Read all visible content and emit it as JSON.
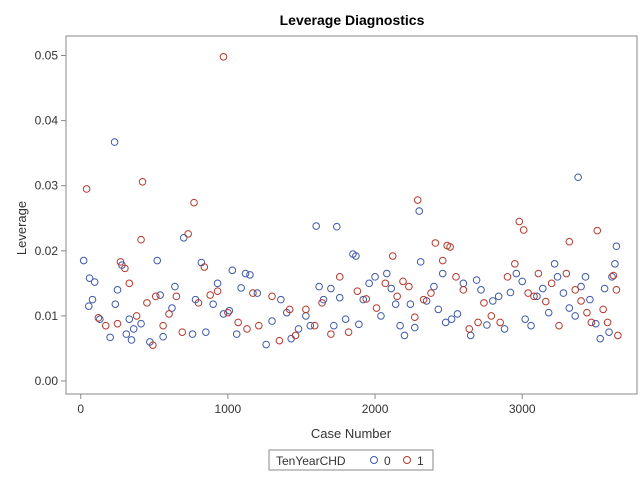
{
  "chart_data": {
    "type": "scatter",
    "title": "Leverage Diagnostics",
    "xlabel": "Case Number",
    "ylabel": "Leverage",
    "xlim": [
      -100,
      3780
    ],
    "ylim": [
      -0.002,
      0.053
    ],
    "xticks": [
      0,
      1000,
      2000,
      3000
    ],
    "xtick_labels": [
      "0",
      "1000",
      "2000",
      "3000"
    ],
    "yticks": [
      0,
      0.01,
      0.02,
      0.03,
      0.04,
      0.05
    ],
    "ytick_labels": [
      "0.00",
      "0.01",
      "0.02",
      "0.03",
      "0.04",
      "0.05"
    ],
    "grid": false,
    "legend": {
      "title": "TenYearCHD",
      "placement": "bottom"
    },
    "series": [
      {
        "name": "0",
        "color": "#3f5aa8",
        "points": [
          [
            20,
            0.0185
          ],
          [
            55,
            0.0115
          ],
          [
            60,
            0.0158
          ],
          [
            80,
            0.0125
          ],
          [
            95,
            0.0152
          ],
          [
            130,
            0.0095
          ],
          [
            200,
            0.0067
          ],
          [
            230,
            0.0367
          ],
          [
            235,
            0.0118
          ],
          [
            250,
            0.014
          ],
          [
            280,
            0.0178
          ],
          [
            310,
            0.0072
          ],
          [
            330,
            0.0095
          ],
          [
            345,
            0.0063
          ],
          [
            360,
            0.008
          ],
          [
            410,
            0.0088
          ],
          [
            470,
            0.006
          ],
          [
            520,
            0.0185
          ],
          [
            540,
            0.0132
          ],
          [
            560,
            0.0068
          ],
          [
            620,
            0.0112
          ],
          [
            640,
            0.0145
          ],
          [
            700,
            0.022
          ],
          [
            760,
            0.0072
          ],
          [
            780,
            0.0125
          ],
          [
            820,
            0.0182
          ],
          [
            850,
            0.0075
          ],
          [
            900,
            0.0118
          ],
          [
            930,
            0.015
          ],
          [
            970,
            0.0103
          ],
          [
            1010,
            0.0108
          ],
          [
            1030,
            0.017
          ],
          [
            1060,
            0.0072
          ],
          [
            1090,
            0.0143
          ],
          [
            1120,
            0.0165
          ],
          [
            1150,
            0.0163
          ],
          [
            1200,
            0.0135
          ],
          [
            1260,
            0.0056
          ],
          [
            1300,
            0.0092
          ],
          [
            1360,
            0.0125
          ],
          [
            1400,
            0.0105
          ],
          [
            1430,
            0.0065
          ],
          [
            1480,
            0.008
          ],
          [
            1530,
            0.01
          ],
          [
            1560,
            0.0085
          ],
          [
            1600,
            0.0238
          ],
          [
            1620,
            0.0145
          ],
          [
            1650,
            0.0125
          ],
          [
            1700,
            0.0142
          ],
          [
            1720,
            0.0085
          ],
          [
            1740,
            0.0237
          ],
          [
            1760,
            0.0128
          ],
          [
            1800,
            0.0095
          ],
          [
            1850,
            0.0195
          ],
          [
            1870,
            0.0192
          ],
          [
            1890,
            0.0087
          ],
          [
            1920,
            0.0125
          ],
          [
            1960,
            0.015
          ],
          [
            2000,
            0.016
          ],
          [
            2040,
            0.01
          ],
          [
            2080,
            0.0165
          ],
          [
            2110,
            0.0142
          ],
          [
            2140,
            0.0118
          ],
          [
            2170,
            0.0085
          ],
          [
            2200,
            0.007
          ],
          [
            2240,
            0.0118
          ],
          [
            2270,
            0.0082
          ],
          [
            2300,
            0.0261
          ],
          [
            2310,
            0.0183
          ],
          [
            2350,
            0.0123
          ],
          [
            2400,
            0.0145
          ],
          [
            2430,
            0.011
          ],
          [
            2460,
            0.0165
          ],
          [
            2480,
            0.009
          ],
          [
            2520,
            0.0095
          ],
          [
            2560,
            0.0103
          ],
          [
            2600,
            0.015
          ],
          [
            2650,
            0.007
          ],
          [
            2690,
            0.0155
          ],
          [
            2720,
            0.014
          ],
          [
            2760,
            0.0086
          ],
          [
            2800,
            0.0123
          ],
          [
            2840,
            0.013
          ],
          [
            2880,
            0.008
          ],
          [
            2920,
            0.0136
          ],
          [
            2960,
            0.0165
          ],
          [
            3000,
            0.0153
          ],
          [
            3020,
            0.0095
          ],
          [
            3060,
            0.0085
          ],
          [
            3100,
            0.013
          ],
          [
            3140,
            0.0142
          ],
          [
            3180,
            0.0105
          ],
          [
            3220,
            0.018
          ],
          [
            3240,
            0.016
          ],
          [
            3280,
            0.0135
          ],
          [
            3320,
            0.0112
          ],
          [
            3360,
            0.01
          ],
          [
            3380,
            0.0313
          ],
          [
            3400,
            0.0145
          ],
          [
            3430,
            0.016
          ],
          [
            3460,
            0.0125
          ],
          [
            3500,
            0.0088
          ],
          [
            3530,
            0.0065
          ],
          [
            3560,
            0.0142
          ],
          [
            3590,
            0.0075
          ],
          [
            3610,
            0.016
          ],
          [
            3630,
            0.018
          ],
          [
            3640,
            0.0207
          ]
        ]
      },
      {
        "name": "1",
        "color": "#b33a2e",
        "points": [
          [
            40,
            0.0295
          ],
          [
            120,
            0.0097
          ],
          [
            170,
            0.0085
          ],
          [
            250,
            0.0088
          ],
          [
            270,
            0.0183
          ],
          [
            300,
            0.0173
          ],
          [
            330,
            0.015
          ],
          [
            380,
            0.01
          ],
          [
            410,
            0.0217
          ],
          [
            420,
            0.0306
          ],
          [
            450,
            0.012
          ],
          [
            490,
            0.0055
          ],
          [
            510,
            0.013
          ],
          [
            560,
            0.0085
          ],
          [
            600,
            0.0103
          ],
          [
            650,
            0.013
          ],
          [
            690,
            0.0075
          ],
          [
            730,
            0.0226
          ],
          [
            770,
            0.0274
          ],
          [
            800,
            0.012
          ],
          [
            840,
            0.0175
          ],
          [
            880,
            0.0132
          ],
          [
            930,
            0.0138
          ],
          [
            970,
            0.0498
          ],
          [
            1000,
            0.0105
          ],
          [
            1070,
            0.009
          ],
          [
            1130,
            0.008
          ],
          [
            1170,
            0.0135
          ],
          [
            1210,
            0.0085
          ],
          [
            1300,
            0.013
          ],
          [
            1350,
            0.0062
          ],
          [
            1420,
            0.011
          ],
          [
            1460,
            0.007
          ],
          [
            1530,
            0.011
          ],
          [
            1590,
            0.0085
          ],
          [
            1640,
            0.012
          ],
          [
            1700,
            0.0072
          ],
          [
            1760,
            0.016
          ],
          [
            1820,
            0.0075
          ],
          [
            1880,
            0.0138
          ],
          [
            1940,
            0.0126
          ],
          [
            2010,
            0.0112
          ],
          [
            2070,
            0.015
          ],
          [
            2120,
            0.0192
          ],
          [
            2150,
            0.013
          ],
          [
            2190,
            0.0153
          ],
          [
            2230,
            0.0145
          ],
          [
            2270,
            0.0098
          ],
          [
            2290,
            0.0278
          ],
          [
            2330,
            0.0125
          ],
          [
            2380,
            0.0135
          ],
          [
            2410,
            0.0212
          ],
          [
            2460,
            0.0185
          ],
          [
            2490,
            0.0208
          ],
          [
            2510,
            0.0206
          ],
          [
            2550,
            0.016
          ],
          [
            2600,
            0.014
          ],
          [
            2640,
            0.008
          ],
          [
            2700,
            0.009
          ],
          [
            2740,
            0.012
          ],
          [
            2790,
            0.01
          ],
          [
            2850,
            0.009
          ],
          [
            2900,
            0.016
          ],
          [
            2950,
            0.018
          ],
          [
            2980,
            0.0245
          ],
          [
            3010,
            0.0232
          ],
          [
            3040,
            0.0135
          ],
          [
            3080,
            0.013
          ],
          [
            3110,
            0.0165
          ],
          [
            3160,
            0.0122
          ],
          [
            3200,
            0.015
          ],
          [
            3250,
            0.0085
          ],
          [
            3300,
            0.0165
          ],
          [
            3320,
            0.0214
          ],
          [
            3360,
            0.014
          ],
          [
            3400,
            0.0123
          ],
          [
            3440,
            0.0105
          ],
          [
            3470,
            0.009
          ],
          [
            3510,
            0.0231
          ],
          [
            3550,
            0.011
          ],
          [
            3580,
            0.009
          ],
          [
            3620,
            0.0162
          ],
          [
            3640,
            0.014
          ],
          [
            3650,
            0.007
          ]
        ]
      }
    ]
  }
}
